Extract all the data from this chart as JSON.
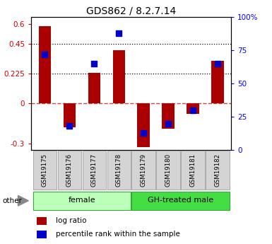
{
  "title": "GDS862 / 8.2.7.14",
  "samples": [
    "GSM19175",
    "GSM19176",
    "GSM19177",
    "GSM19178",
    "GSM19179",
    "GSM19180",
    "GSM19181",
    "GSM19182"
  ],
  "log_ratio": [
    0.58,
    -0.18,
    0.23,
    0.4,
    -0.33,
    -0.19,
    -0.08,
    0.32
  ],
  "percentile_rank": [
    0.72,
    0.18,
    0.65,
    0.88,
    0.13,
    0.2,
    0.3,
    0.65
  ],
  "groups": [
    {
      "label": "female",
      "indices": [
        0,
        1,
        2,
        3
      ],
      "color": "#bbffbb"
    },
    {
      "label": "GH-treated male",
      "indices": [
        4,
        5,
        6,
        7
      ],
      "color": "#44dd44"
    }
  ],
  "ylim_left": [
    -0.35,
    0.65
  ],
  "ylim_right": [
    0,
    100
  ],
  "yticks_left": [
    -0.3,
    0.0,
    0.225,
    0.45,
    0.6
  ],
  "ytick_labels_left": [
    "-0.3",
    "0",
    "0.225",
    "0.45",
    "0.6"
  ],
  "yticks_right": [
    0,
    25,
    50,
    75,
    100
  ],
  "ytick_labels_right": [
    "0",
    "25",
    "50",
    "75",
    "100%"
  ],
  "hlines_dotted": [
    0.225,
    0.45
  ],
  "bar_color": "#aa0000",
  "square_color": "#0000cc",
  "zero_line_color": "#cc4444",
  "bar_width": 0.5,
  "square_size": 30,
  "female_color": "#bbffbb",
  "male_color": "#44dd44",
  "group_edge_color": "#33aa33"
}
